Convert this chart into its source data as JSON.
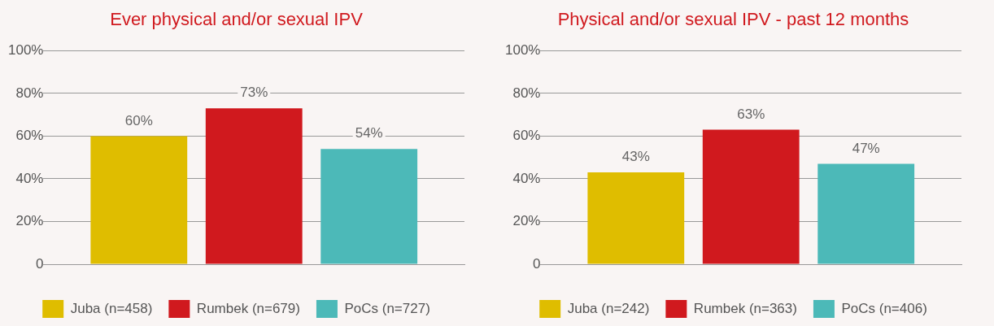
{
  "chart_data": [
    {
      "type": "bar",
      "title": "Ever physical and/or sexual IPV",
      "categories": [
        null
      ],
      "series": [
        {
          "name": "Juba (n=458)",
          "color": "#dfbd00",
          "values": [
            60
          ],
          "value_labels": [
            "60%"
          ]
        },
        {
          "name": "Rumbek (n=679)",
          "color": "#d0191e",
          "values": [
            73
          ],
          "value_labels": [
            "73%"
          ]
        },
        {
          "name": "PoCs (n=727)",
          "color": "#4cb9b8",
          "values": [
            54
          ],
          "value_labels": [
            "54%"
          ]
        }
      ],
      "ylim": [
        0,
        100
      ],
      "yticks": [
        {
          "value": 0,
          "label": "0"
        },
        {
          "value": 20,
          "label": "20%"
        },
        {
          "value": 40,
          "label": "40%"
        },
        {
          "value": 60,
          "label": "60%"
        },
        {
          "value": 80,
          "label": "80%"
        },
        {
          "value": 100,
          "label": "100%"
        }
      ],
      "grid": "y",
      "legend": "bottom"
    },
    {
      "type": "bar",
      "title": "Physical and/or sexual IPV - past 12 months",
      "categories": [
        null
      ],
      "series": [
        {
          "name": "Juba (n=242)",
          "color": "#dfbd00",
          "values": [
            43
          ],
          "value_labels": [
            "43%"
          ]
        },
        {
          "name": "Rumbek (n=363)",
          "color": "#d0191e",
          "values": [
            63
          ],
          "value_labels": [
            "63%"
          ]
        },
        {
          "name": "PoCs (n=406)",
          "color": "#4cb9b8",
          "values": [
            47
          ],
          "value_labels": [
            "47%"
          ]
        }
      ],
      "ylim": [
        0,
        100
      ],
      "yticks": [
        {
          "value": 0,
          "label": "0"
        },
        {
          "value": 20,
          "label": "20%"
        },
        {
          "value": 40,
          "label": "40%"
        },
        {
          "value": 60,
          "label": "60%"
        },
        {
          "value": 80,
          "label": "80%"
        },
        {
          "value": 100,
          "label": "100%"
        }
      ],
      "grid": "y",
      "legend": "bottom"
    }
  ]
}
